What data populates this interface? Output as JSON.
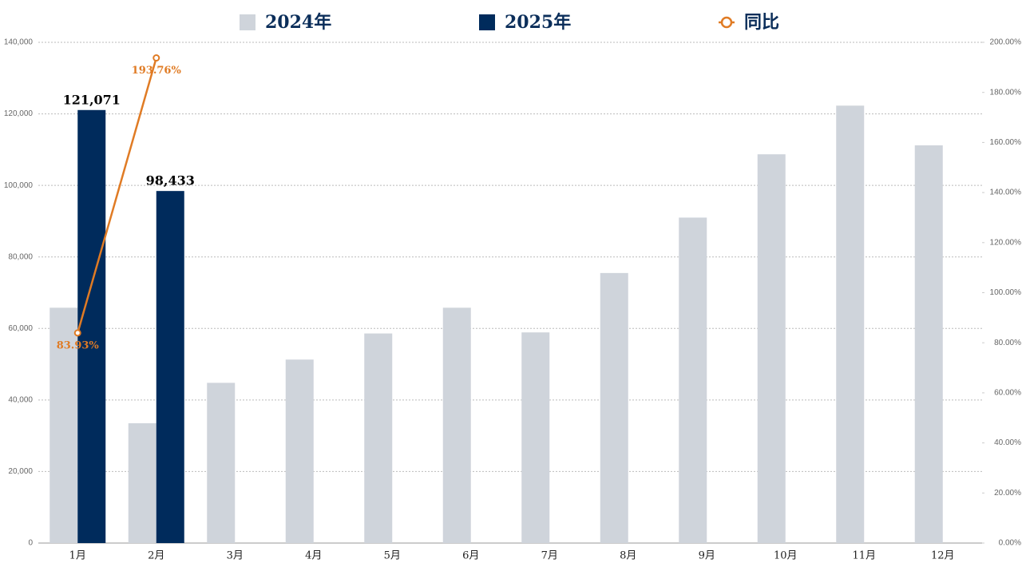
{
  "chart_data": {
    "type": "bar",
    "categories": [
      "1月",
      "2月",
      "3月",
      "4月",
      "5月",
      "6月",
      "7月",
      "8月",
      "9月",
      "10月",
      "11月",
      "12月"
    ],
    "series": [
      {
        "name": "2024年",
        "color": "#cfd4db",
        "values": [
          65800,
          33500,
          44800,
          51300,
          58600,
          65800,
          58900,
          75500,
          91000,
          108700,
          122300,
          111200
        ]
      },
      {
        "name": "2025年",
        "color": "#002b5c",
        "values": [
          121071,
          98433,
          null,
          null,
          null,
          null,
          null,
          null,
          null,
          null,
          null,
          null
        ],
        "value_labels": [
          "121,071",
          "98,433",
          null,
          null,
          null,
          null,
          null,
          null,
          null,
          null,
          null,
          null
        ]
      },
      {
        "name": "同比",
        "type": "line",
        "axis": "y2",
        "color": "#e07b24",
        "values": [
          83.93,
          193.76,
          null,
          null,
          null,
          null,
          null,
          null,
          null,
          null,
          null,
          null
        ],
        "value_labels": [
          "83.93%",
          "193.76%",
          null,
          null,
          null,
          null,
          null,
          null,
          null,
          null,
          null,
          null
        ]
      }
    ],
    "ylim": [
      0,
      140000
    ],
    "yticks": [
      0,
      {
        "value": 20000,
        "label": "20,000"
      },
      {
        "value": 40000,
        "label": "40,000"
      },
      {
        "value": 60000,
        "label": "60,000"
      },
      {
        "value": 80000,
        "label": "80,000"
      },
      {
        "value": 100000,
        "label": "100,000"
      },
      {
        "value": 120000,
        "label": "120,000"
      },
      {
        "value": 140000,
        "label": "140,000"
      }
    ],
    "y2lim": [
      0,
      200
    ],
    "y2ticks": [
      {
        "value": 0,
        "label": "0.00%"
      },
      {
        "value": 20,
        "label": "20.00%"
      },
      {
        "value": 40,
        "label": "40.00%"
      },
      {
        "value": 60,
        "label": "60.00%"
      },
      {
        "value": 80,
        "label": "80.00%"
      },
      {
        "value": 100,
        "label": "100.00%"
      },
      {
        "value": 120,
        "label": "120.00%"
      },
      {
        "value": 140,
        "label": "140.00%"
      },
      {
        "value": 160,
        "label": "160.00%"
      },
      {
        "value": 180,
        "label": "180.00%"
      },
      {
        "value": 200,
        "label": "200.00%"
      }
    ],
    "grid": true,
    "legend": "top"
  }
}
